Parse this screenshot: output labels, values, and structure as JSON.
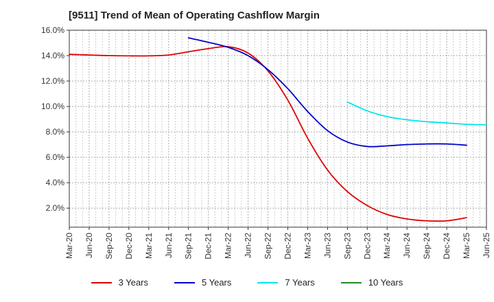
{
  "chart_data": {
    "type": "line",
    "title": "[9511]  Trend of Mean of Operating Cashflow Margin",
    "xlabel": "",
    "ylabel": "",
    "categories": [
      "Mar-20",
      "Jun-20",
      "Sep-20",
      "Dec-20",
      "Mar-21",
      "Jun-21",
      "Sep-21",
      "Dec-21",
      "Mar-22",
      "Jun-22",
      "Sep-22",
      "Dec-22",
      "Mar-23",
      "Jun-23",
      "Sep-23",
      "Dec-23",
      "Mar-24",
      "Jun-24",
      "Sep-24",
      "Dec-24",
      "Mar-25",
      "Jun-25"
    ],
    "ylim": [
      0.5,
      16.0
    ],
    "yticks": [
      2.0,
      4.0,
      6.0,
      8.0,
      10.0,
      12.0,
      14.0,
      16.0
    ],
    "ytick_labels": [
      "2.0%",
      "4.0%",
      "6.0%",
      "8.0%",
      "10.0%",
      "12.0%",
      "14.0%",
      "16.0%"
    ],
    "grid": true,
    "legend_position": "bottom",
    "series": [
      {
        "name": "3 Years",
        "color": "#dd0000",
        "values": [
          14.1,
          14.05,
          14.0,
          13.98,
          13.98,
          14.05,
          14.3,
          14.55,
          14.7,
          14.2,
          12.8,
          10.5,
          7.5,
          5.0,
          3.3,
          2.2,
          1.5,
          1.15,
          1.0,
          1.0,
          1.25,
          null
        ]
      },
      {
        "name": "5 Years",
        "color": "#0000cc",
        "values": [
          null,
          null,
          null,
          null,
          null,
          null,
          15.4,
          15.05,
          14.65,
          14.0,
          12.9,
          11.4,
          9.6,
          8.1,
          7.2,
          6.85,
          6.9,
          7.0,
          7.05,
          7.05,
          6.95,
          null
        ]
      },
      {
        "name": "7 Years",
        "color": "#00e5ee",
        "values": [
          null,
          null,
          null,
          null,
          null,
          null,
          null,
          null,
          null,
          null,
          null,
          null,
          null,
          null,
          10.35,
          9.65,
          9.2,
          8.95,
          8.8,
          8.7,
          8.6,
          8.55
        ]
      },
      {
        "name": "10 Years",
        "color": "#228b22",
        "values": [
          null,
          null,
          null,
          null,
          null,
          null,
          null,
          null,
          null,
          null,
          null,
          null,
          null,
          null,
          null,
          null,
          null,
          null,
          null,
          null,
          null,
          null
        ]
      }
    ]
  }
}
